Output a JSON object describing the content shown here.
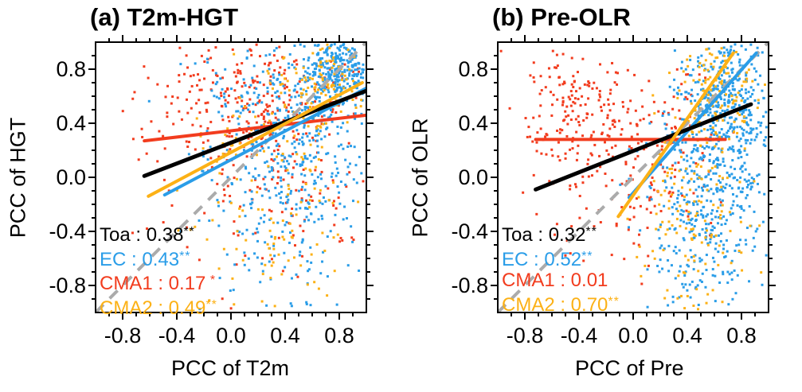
{
  "figure": {
    "background": "#ffffff",
    "identity_line_color": "#ababab",
    "axis_color": "#000000"
  },
  "chart_data": {
    "type": "scatter",
    "description": "Scatter of pattern correlation coefficients with least-squares regression lines and identity reference line",
    "panels": [
      {
        "id": "a",
        "title": "(a) T2m-HGT",
        "xlabel": "PCC of T2m",
        "ylabel": "PCC of HGT",
        "xlim": [
          -1,
          1
        ],
        "ylim": [
          -1,
          1
        ],
        "major_ticks": [
          -0.8,
          -0.4,
          0.0,
          0.4,
          0.8
        ],
        "tick_labels": [
          "-0.8",
          "-0.4",
          "0.0",
          "0.4",
          "0.8"
        ],
        "minor_tick_step": 0.1,
        "grid": false,
        "legend_position": "lower-left-inside",
        "identity_line": {
          "from": [
            -1,
            -1
          ],
          "to": [
            1,
            1
          ],
          "style": "dashed",
          "color": "#ababab"
        },
        "series": [
          {
            "name": "Toa",
            "color": "#000000",
            "correlation": "0.38",
            "stars": "**",
            "line": {
              "x1": -0.64,
              "y1": 0.01,
              "x2": 1.0,
              "y2": 0.64
            },
            "line_z": 3
          },
          {
            "name": "EC",
            "color": "#2a9de8",
            "correlation": "0.43",
            "stars": "**",
            "line": {
              "x1": -0.49,
              "y1": -0.13,
              "x2": 1.0,
              "y2": 0.66
            },
            "line_z": 2,
            "scatter": {
              "z": 2,
              "seed": 11,
              "point_size": 3,
              "clusters": [
                {
                  "n": 270,
                  "mx": 0.8,
                  "my": 0.8,
                  "sx": 0.15,
                  "sy": 0.15
                },
                {
                  "n": 200,
                  "mx": 0.55,
                  "my": 0.35,
                  "sx": 0.28,
                  "sy": 0.3
                },
                {
                  "n": 160,
                  "mx": 0.45,
                  "my": -0.35,
                  "sx": 0.28,
                  "sy": 0.35
                },
                {
                  "n": 120,
                  "mx": 0.15,
                  "my": 0.45,
                  "sx": 0.25,
                  "sy": 0.35
                }
              ]
            }
          },
          {
            "name": "CMA1",
            "color": "#f23c1e",
            "correlation": "0.17",
            "stars": " *",
            "line": {
              "x1": -0.64,
              "y1": 0.27,
              "x2": 1.0,
              "y2": 0.46
            },
            "line_z": 1,
            "scatter": {
              "z": 1,
              "seed": 21,
              "point_size": 3,
              "clusters": [
                {
                  "n": 200,
                  "mx": 0.05,
                  "my": 0.55,
                  "sx": 0.35,
                  "sy": 0.22
                },
                {
                  "n": 90,
                  "mx": 0.55,
                  "my": 0.45,
                  "sx": 0.28,
                  "sy": 0.28
                },
                {
                  "n": 100,
                  "mx": 0.25,
                  "my": -0.2,
                  "sx": 0.4,
                  "sy": 0.35
                }
              ]
            }
          },
          {
            "name": "CMA2",
            "color": "#fcb116",
            "correlation": "0.49",
            "stars": "**",
            "line": {
              "x1": -0.61,
              "y1": -0.14,
              "x2": 0.97,
              "y2": 0.7
            },
            "line_z": 4,
            "scatter": {
              "z": 3,
              "seed": 31,
              "point_size": 3,
              "clusters": [
                {
                  "n": 90,
                  "mx": 0.72,
                  "my": 0.72,
                  "sx": 0.18,
                  "sy": 0.18
                },
                {
                  "n": 80,
                  "mx": 0.35,
                  "my": 0.25,
                  "sx": 0.3,
                  "sy": 0.3
                },
                {
                  "n": 70,
                  "mx": 0.35,
                  "my": -0.5,
                  "sx": 0.28,
                  "sy": 0.3
                }
              ]
            }
          }
        ]
      },
      {
        "id": "b",
        "title": "(b) Pre-OLR",
        "xlabel": "PCC of Pre",
        "ylabel": "PCC of OLR",
        "xlim": [
          -1,
          1
        ],
        "ylim": [
          -1,
          1
        ],
        "major_ticks": [
          -0.8,
          -0.4,
          0.0,
          0.4,
          0.8
        ],
        "tick_labels": [
          "-0.8",
          "-0.4",
          "0.0",
          "0.4",
          "0.8"
        ],
        "minor_tick_step": 0.1,
        "grid": false,
        "legend_position": "lower-left-inside",
        "identity_line": {
          "from": [
            -1,
            -1
          ],
          "to": [
            1,
            1
          ],
          "style": "dashed",
          "color": "#ababab"
        },
        "series": [
          {
            "name": "Toa",
            "color": "#000000",
            "correlation": "0.32",
            "stars": "**",
            "line": {
              "x1": -0.72,
              "y1": -0.09,
              "x2": 0.87,
              "y2": 0.54
            },
            "line_z": 3
          },
          {
            "name": "EC",
            "color": "#2a9de8",
            "correlation": "0.52",
            "stars": "**",
            "line": {
              "x1": -0.03,
              "y1": -0.15,
              "x2": 0.91,
              "y2": 0.92
            },
            "line_z": 2,
            "scatter": {
              "z": 2,
              "seed": 41,
              "point_size": 3,
              "clusters": [
                {
                  "n": 300,
                  "mx": 0.68,
                  "my": 0.6,
                  "sx": 0.16,
                  "sy": 0.22
                },
                {
                  "n": 250,
                  "mx": 0.55,
                  "my": 0.1,
                  "sx": 0.2,
                  "sy": 0.3
                },
                {
                  "n": 160,
                  "mx": 0.5,
                  "my": -0.5,
                  "sx": 0.2,
                  "sy": 0.28
                },
                {
                  "n": 90,
                  "mx": 0.85,
                  "my": 0.2,
                  "sx": 0.12,
                  "sy": 0.4
                }
              ]
            }
          },
          {
            "name": "CMA1",
            "color": "#f23c1e",
            "correlation": "0.01",
            "stars": "",
            "line": {
              "x1": -0.72,
              "y1": 0.28,
              "x2": 0.68,
              "y2": 0.28
            },
            "line_z": 1,
            "scatter": {
              "z": 1,
              "seed": 51,
              "point_size": 3,
              "clusters": [
                {
                  "n": 160,
                  "mx": -0.42,
                  "my": 0.55,
                  "sx": 0.22,
                  "sy": 0.25
                },
                {
                  "n": 90,
                  "mx": -0.15,
                  "my": 0.1,
                  "sx": 0.3,
                  "sy": 0.3
                },
                {
                  "n": 70,
                  "mx": 0.35,
                  "my": 0.3,
                  "sx": 0.22,
                  "sy": 0.25
                },
                {
                  "n": 30,
                  "mx": 0.0,
                  "my": -0.35,
                  "sx": 0.3,
                  "sy": 0.2
                }
              ]
            }
          },
          {
            "name": "CMA2",
            "color": "#fcb116",
            "correlation": "0.70",
            "stars": "**",
            "line": {
              "x1": -0.11,
              "y1": -0.29,
              "x2": 0.74,
              "y2": 0.92
            },
            "line_z": 4,
            "scatter": {
              "z": 3,
              "seed": 61,
              "point_size": 3,
              "clusters": [
                {
                  "n": 110,
                  "mx": 0.62,
                  "my": 0.65,
                  "sx": 0.15,
                  "sy": 0.22
                },
                {
                  "n": 90,
                  "mx": 0.45,
                  "my": 0.05,
                  "sx": 0.18,
                  "sy": 0.3
                },
                {
                  "n": 70,
                  "mx": 0.42,
                  "my": -0.55,
                  "sx": 0.18,
                  "sy": 0.28
                }
              ]
            }
          }
        ]
      }
    ]
  }
}
